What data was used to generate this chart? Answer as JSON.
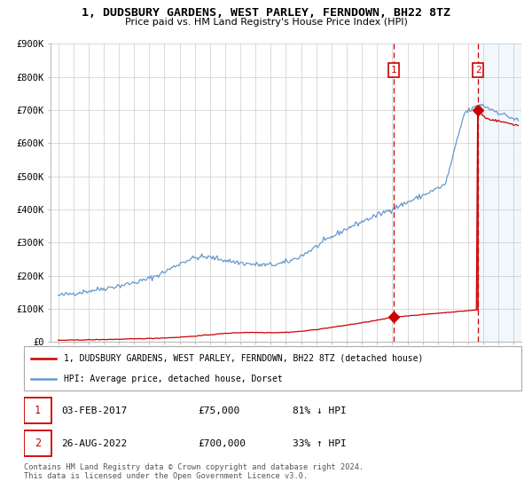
{
  "title": "1, DUDSBURY GARDENS, WEST PARLEY, FERNDOWN, BH22 8TZ",
  "subtitle": "Price paid vs. HM Land Registry's House Price Index (HPI)",
  "legend_line1": "1, DUDSBURY GARDENS, WEST PARLEY, FERNDOWN, BH22 8TZ (detached house)",
  "legend_line2": "HPI: Average price, detached house, Dorset",
  "annotation1_date": "03-FEB-2017",
  "annotation1_price": "£75,000",
  "annotation1_hpi": "81% ↓ HPI",
  "annotation2_date": "26-AUG-2022",
  "annotation2_price": "£700,000",
  "annotation2_hpi": "33% ↑ HPI",
  "footer": "Contains HM Land Registry data © Crown copyright and database right 2024.\nThis data is licensed under the Open Government Licence v3.0.",
  "red_color": "#cc0000",
  "blue_color": "#6699cc",
  "bg_color": "#ddeeff",
  "ylim": [
    0,
    900000
  ],
  "yticks": [
    0,
    100000,
    200000,
    300000,
    400000,
    500000,
    600000,
    700000,
    800000,
    900000
  ],
  "ytick_labels": [
    "£0",
    "£100K",
    "£200K",
    "£300K",
    "£400K",
    "£500K",
    "£600K",
    "£700K",
    "£800K",
    "£900K"
  ],
  "marker1_x": 2017.09,
  "marker1_y_red": 75000,
  "marker2_x": 2022.65,
  "marker2_y_red": 700000,
  "t_start": 1995.0,
  "t_end": 2025.3,
  "x_min": 1994.5,
  "x_max": 2025.5
}
